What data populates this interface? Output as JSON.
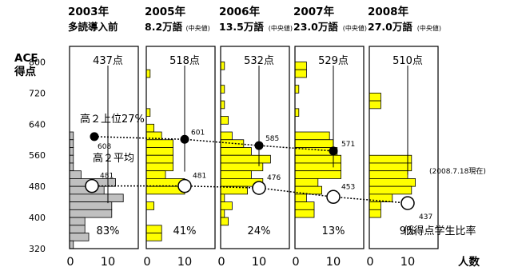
{
  "chart_data": {
    "type": "bar",
    "orientation": "horizontal",
    "y_axis_label": [
      "ACE",
      "得点"
    ],
    "y_ticks": [
      800,
      720,
      640,
      560,
      480,
      400,
      320
    ],
    "ylim": [
      320,
      840
    ],
    "bin_width": 20,
    "x_ticks": [
      "0",
      "10"
    ],
    "x_unit": "人数",
    "xlim_per_panel": [
      0,
      18
    ],
    "panels": [
      {
        "year": "2003年",
        "sub": "多読導入前",
        "sub_small": "",
        "top_label": "437点",
        "ratio": "83%",
        "bar_color": "#c0c0c0",
        "bins": [
          [
            600,
            1
          ],
          [
            580,
            1
          ],
          [
            560,
            1
          ],
          [
            540,
            1
          ],
          [
            520,
            1
          ],
          [
            500,
            3
          ],
          [
            480,
            12
          ],
          [
            460,
            9
          ],
          [
            440,
            14
          ],
          [
            420,
            11
          ],
          [
            400,
            11
          ],
          [
            380,
            4
          ],
          [
            360,
            4
          ],
          [
            340,
            5
          ],
          [
            320,
            1
          ]
        ],
        "median": 437,
        "median_label": "",
        "avg_label": "481",
        "upper_label": "608"
      },
      {
        "year": "2005年",
        "sub": "8.2万語",
        "sub_small": "(中央値)",
        "top_label": "518点",
        "ratio": "41%",
        "bar_color": "#ffff00",
        "bins": [
          [
            760,
            1
          ],
          [
            660,
            1
          ],
          [
            620,
            2
          ],
          [
            600,
            4
          ],
          [
            580,
            7
          ],
          [
            560,
            7
          ],
          [
            540,
            7
          ],
          [
            520,
            7
          ],
          [
            500,
            5
          ],
          [
            480,
            10
          ],
          [
            460,
            10
          ],
          [
            420,
            2
          ],
          [
            360,
            4
          ],
          [
            340,
            4
          ]
        ],
        "median": 518,
        "median_label": "",
        "avg_label": "481",
        "upper_label": "601"
      },
      {
        "year": "2006年",
        "sub": "13.5万語",
        "sub_small": "(中央値)",
        "top_label": "532点",
        "ratio": "24%",
        "bar_color": "#ffff00",
        "bins": [
          [
            780,
            1
          ],
          [
            720,
            1
          ],
          [
            680,
            1
          ],
          [
            640,
            2
          ],
          [
            600,
            3
          ],
          [
            580,
            6
          ],
          [
            560,
            8
          ],
          [
            540,
            13
          ],
          [
            520,
            11
          ],
          [
            500,
            8
          ],
          [
            480,
            11
          ],
          [
            460,
            7
          ],
          [
            440,
            1
          ],
          [
            420,
            3
          ],
          [
            400,
            1
          ],
          [
            380,
            2
          ]
        ],
        "median": 532,
        "median_label": "",
        "avg_label": "476",
        "upper_label": "585"
      },
      {
        "year": "2007年",
        "sub": "23.0万語",
        "sub_small": "(中央値)",
        "top_label": "529点",
        "ratio": "13%",
        "bar_color": "#ffff00",
        "bins": [
          [
            780,
            3
          ],
          [
            760,
            3
          ],
          [
            720,
            1
          ],
          [
            660,
            1
          ],
          [
            600,
            9
          ],
          [
            580,
            10
          ],
          [
            560,
            11
          ],
          [
            540,
            12
          ],
          [
            520,
            12
          ],
          [
            500,
            12
          ],
          [
            480,
            6
          ],
          [
            460,
            7
          ],
          [
            440,
            3
          ],
          [
            420,
            5
          ],
          [
            400,
            5
          ]
        ],
        "median": 529,
        "median_label": "",
        "avg_label": "453",
        "upper_label": "571"
      },
      {
        "year": "2008年",
        "sub": "27.0万語",
        "sub_small": "(中央値)",
        "top_label": "510点",
        "ratio": "9%",
        "bar_color": "#ffff00",
        "bins": [
          [
            700,
            3
          ],
          [
            680,
            3
          ],
          [
            540,
            11
          ],
          [
            520,
            11
          ],
          [
            500,
            10
          ],
          [
            480,
            12
          ],
          [
            460,
            11
          ],
          [
            440,
            6
          ],
          [
            420,
            3
          ],
          [
            400,
            3
          ]
        ],
        "median": 510,
        "median_label": "",
        "avg_label": "437",
        "upper_label": "(2008.7.18現在)"
      }
    ],
    "series": [
      {
        "name": "高２上位27%",
        "marker": "filled",
        "values": [
          608,
          601,
          585,
          571
        ]
      },
      {
        "name": "高２平均",
        "marker": "open",
        "values": [
          481,
          481,
          476,
          453,
          437
        ]
      }
    ],
    "annotations": {
      "low_ratio": "低得点学生比率",
      "date_note": "(2008.7.18現在)"
    }
  }
}
